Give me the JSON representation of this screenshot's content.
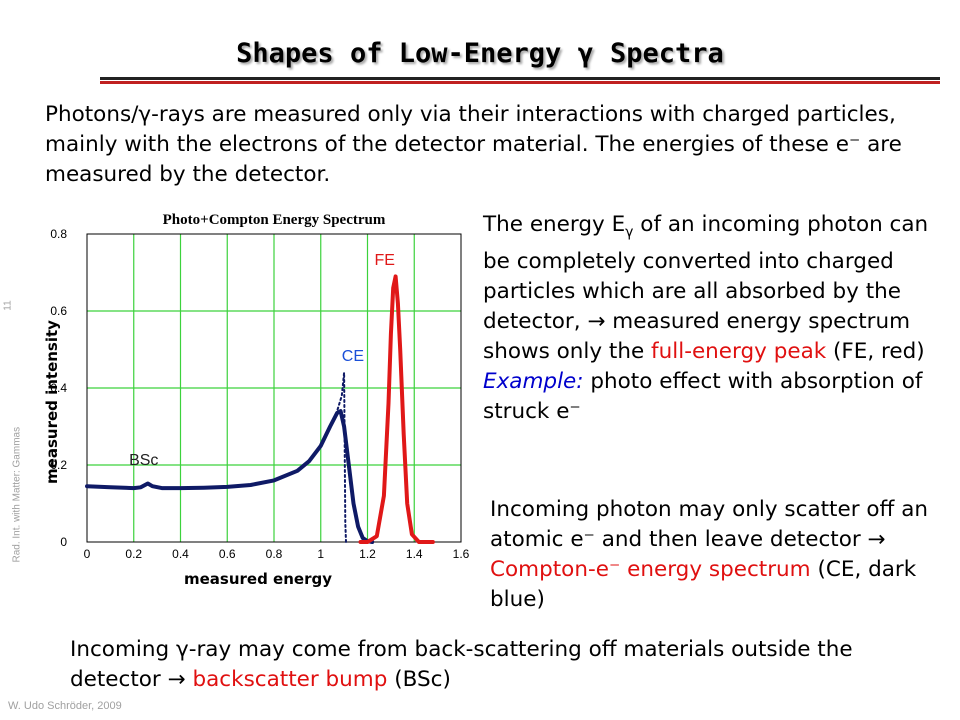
{
  "slide": {
    "title": "Shapes of Low-Energy γ Spectra",
    "p1": "Photons/γ-rays are measured only via their interactions with charged particles, mainly with the electrons of the detector material. The energies of these e⁻ are measured by the detector.",
    "p2_a": "The energy E",
    "p2_sub": "γ",
    "p2_b": " of an incoming photon can be completely converted into charged particles which are all absorbed by the detector, → measured energy spectrum shows only the ",
    "p2_red": "full-energy peak",
    "p2_c": " (FE, red) ",
    "p2_example": "Example:",
    "p2_d": " photo effect with absorption of struck e⁻",
    "p3_a": "Incoming photon may only scatter off an atomic e⁻ and then leave detector → ",
    "p3_red": "Compton-e⁻ energy spectrum",
    "p3_b": " (CE, dark blue)",
    "p4_a": "Incoming γ-ray may come from back-scattering off materials outside the detector → ",
    "p4_red": "backscatter bump",
    "p4_b": " (BSc)",
    "side_text": "Rad. Int. with Matter: Gammas",
    "page_number": "11",
    "footer": "W. Udo Schröder, 2009"
  },
  "colors": {
    "compton": "#0f1a66",
    "fe_peak": "#e01818",
    "grid": "#3cd23c",
    "label_blue": "#1a4fd8",
    "label_red": "#e01818",
    "label_dark": "#222222",
    "title_rule_red": "#c02020"
  },
  "chart_data": {
    "type": "line",
    "title": "Photo+Compton Energy Spectrum",
    "xlabel": "measured energy",
    "ylabel": "measured intensity",
    "xlim": [
      0,
      1.6
    ],
    "ylim": [
      0,
      0.8
    ],
    "x_ticks": [
      "0",
      "0.2",
      "0.4",
      "0.6",
      "0.8",
      "1",
      "1.2",
      "1.4",
      "1.6"
    ],
    "y_ticks": [
      "0",
      "0.2",
      "0.4",
      "0.6",
      "0.8"
    ],
    "grid": true,
    "annotations": [
      {
        "text": "FE",
        "x": 1.23,
        "y": 0.72,
        "color_key": "label_red"
      },
      {
        "text": "CE",
        "x": 1.09,
        "y": 0.47,
        "color_key": "label_blue"
      },
      {
        "text": "BSc",
        "x": 0.18,
        "y": 0.2,
        "color_key": "label_dark"
      }
    ],
    "series": [
      {
        "key": "compton_measured",
        "style": "thick",
        "color_key": "compton",
        "points": [
          [
            0.0,
            0.145
          ],
          [
            0.1,
            0.142
          ],
          [
            0.2,
            0.14
          ],
          [
            0.23,
            0.142
          ],
          [
            0.26,
            0.152
          ],
          [
            0.28,
            0.145
          ],
          [
            0.32,
            0.14
          ],
          [
            0.4,
            0.14
          ],
          [
            0.5,
            0.141
          ],
          [
            0.6,
            0.143
          ],
          [
            0.7,
            0.148
          ],
          [
            0.8,
            0.16
          ],
          [
            0.9,
            0.185
          ],
          [
            0.95,
            0.21
          ],
          [
            1.0,
            0.25
          ],
          [
            1.04,
            0.3
          ],
          [
            1.07,
            0.335
          ],
          [
            1.085,
            0.34
          ],
          [
            1.1,
            0.3
          ],
          [
            1.12,
            0.2
          ],
          [
            1.14,
            0.1
          ],
          [
            1.16,
            0.04
          ],
          [
            1.18,
            0.01
          ],
          [
            1.2,
            0.002
          ],
          [
            1.22,
            0.0
          ]
        ]
      },
      {
        "key": "compton_ideal",
        "style": "dotted",
        "color_key": "compton",
        "points": [
          [
            1.0,
            0.25
          ],
          [
            1.04,
            0.3
          ],
          [
            1.07,
            0.34
          ],
          [
            1.09,
            0.38
          ],
          [
            1.1,
            0.44
          ],
          [
            1.105,
            0.05
          ],
          [
            1.108,
            0.0
          ]
        ]
      },
      {
        "key": "full_energy_peak",
        "style": "thick",
        "color_key": "fe_peak",
        "points": [
          [
            1.17,
            0.0
          ],
          [
            1.2,
            0.0
          ],
          [
            1.24,
            0.015
          ],
          [
            1.27,
            0.12
          ],
          [
            1.29,
            0.36
          ],
          [
            1.3,
            0.54
          ],
          [
            1.31,
            0.66
          ],
          [
            1.32,
            0.69
          ],
          [
            1.33,
            0.62
          ],
          [
            1.34,
            0.5
          ],
          [
            1.355,
            0.28
          ],
          [
            1.37,
            0.1
          ],
          [
            1.39,
            0.02
          ],
          [
            1.42,
            0.0
          ],
          [
            1.48,
            0.0
          ]
        ]
      }
    ]
  }
}
